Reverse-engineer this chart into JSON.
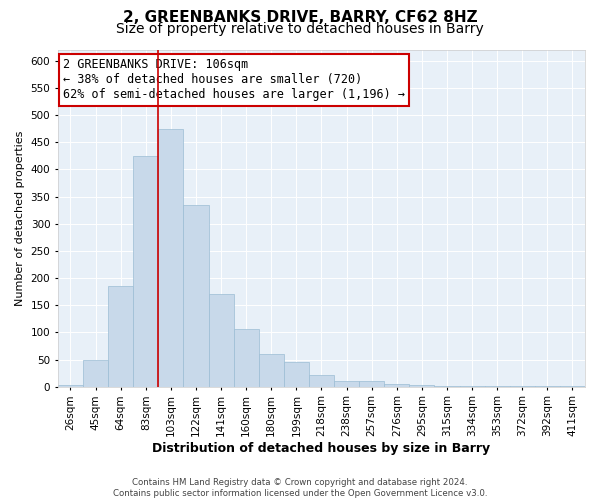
{
  "title": "2, GREENBANKS DRIVE, BARRY, CF62 8HZ",
  "subtitle": "Size of property relative to detached houses in Barry",
  "xlabel": "Distribution of detached houses by size in Barry",
  "ylabel": "Number of detached properties",
  "bar_color": "#c8d9ea",
  "bar_edge_color": "#9bbdd4",
  "background_color": "#e8f0f8",
  "grid_color": "#ffffff",
  "categories": [
    "26sqm",
    "45sqm",
    "64sqm",
    "83sqm",
    "103sqm",
    "122sqm",
    "141sqm",
    "160sqm",
    "180sqm",
    "199sqm",
    "218sqm",
    "238sqm",
    "257sqm",
    "276sqm",
    "295sqm",
    "315sqm",
    "334sqm",
    "353sqm",
    "372sqm",
    "392sqm",
    "411sqm"
  ],
  "values": [
    3,
    50,
    185,
    425,
    475,
    335,
    170,
    107,
    60,
    45,
    22,
    10,
    10,
    5,
    3,
    2,
    2,
    1,
    1,
    1,
    1
  ],
  "ylim": [
    0,
    620
  ],
  "yticks": [
    0,
    50,
    100,
    150,
    200,
    250,
    300,
    350,
    400,
    450,
    500,
    550,
    600
  ],
  "vline_between": 3,
  "annotation_text": "2 GREENBANKS DRIVE: 106sqm\n← 38% of detached houses are smaller (720)\n62% of semi-detached houses are larger (1,196) →",
  "annotation_box_color": "#ffffff",
  "annotation_border_color": "#cc0000",
  "vline_color": "#cc0000",
  "footer_text": "Contains HM Land Registry data © Crown copyright and database right 2024.\nContains public sector information licensed under the Open Government Licence v3.0.",
  "title_fontsize": 11,
  "subtitle_fontsize": 10,
  "annotation_fontsize": 8.5,
  "ylabel_fontsize": 8,
  "xlabel_fontsize": 9,
  "tick_fontsize": 7.5
}
